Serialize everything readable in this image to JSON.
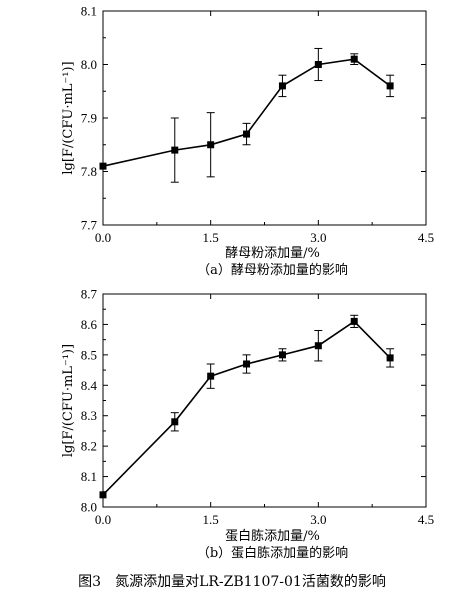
{
  "figure_caption": "图3　氮源添加量对LR-ZB1107-01活菌数的影响",
  "chart_data": [
    {
      "type": "line",
      "subcaption": "（a）酵母粉添加量的影响",
      "xlabel": "酵母粉添加量/%",
      "ylabel": "lg[F/(CFU·mL⁻¹)]",
      "xlim": [
        0.0,
        4.5
      ],
      "ylim": [
        7.7,
        8.1
      ],
      "xticks": [
        "0.0",
        "1.5",
        "3.0",
        "4.5"
      ],
      "xtick_values": [
        0.0,
        1.5,
        3.0,
        4.5
      ],
      "yticks": [
        "7.7",
        "7.8",
        "7.9",
        "8.0",
        "8.1"
      ],
      "ytick_values": [
        7.7,
        7.8,
        7.9,
        8.0,
        8.1
      ],
      "x": [
        0.0,
        1.0,
        1.5,
        2.0,
        2.5,
        3.0,
        3.5,
        4.0
      ],
      "y": [
        7.81,
        7.84,
        7.85,
        7.87,
        7.96,
        8.0,
        8.01,
        7.96
      ],
      "error": [
        0.0,
        0.06,
        0.06,
        0.02,
        0.02,
        0.03,
        0.01,
        0.02
      ],
      "marker": "square"
    },
    {
      "type": "line",
      "subcaption": "（b）蛋白胨添加量的影响",
      "xlabel": "蛋白胨添加量/%",
      "ylabel": "lg[F/(CFU·mL⁻¹)]",
      "xlim": [
        0.0,
        4.5
      ],
      "ylim": [
        8.0,
        8.7
      ],
      "xticks": [
        "0.0",
        "1.5",
        "3.0",
        "4.5"
      ],
      "xtick_values": [
        0.0,
        1.5,
        3.0,
        4.5
      ],
      "yticks": [
        "8.0",
        "8.1",
        "8.2",
        "8.3",
        "8.4",
        "8.5",
        "8.6",
        "8.7"
      ],
      "ytick_values": [
        8.0,
        8.1,
        8.2,
        8.3,
        8.4,
        8.5,
        8.6,
        8.7
      ],
      "x": [
        0.0,
        1.0,
        1.5,
        2.0,
        2.5,
        3.0,
        3.5,
        4.0
      ],
      "y": [
        8.04,
        8.28,
        8.43,
        8.47,
        8.5,
        8.53,
        8.61,
        8.49
      ],
      "error": [
        0.0,
        0.03,
        0.04,
        0.03,
        0.02,
        0.05,
        0.02,
        0.03
      ],
      "marker": "square"
    }
  ]
}
